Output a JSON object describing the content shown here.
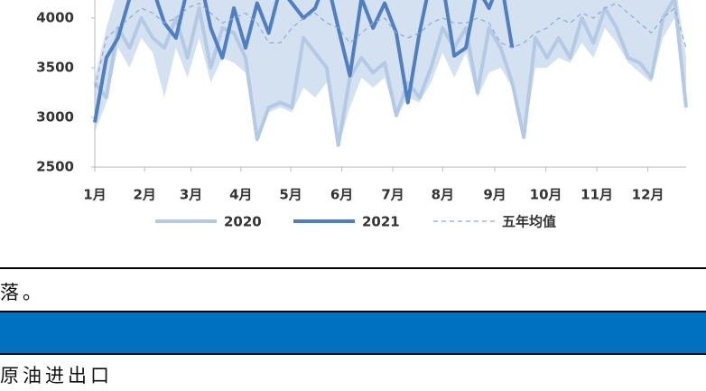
{
  "chart_data": {
    "type": "line",
    "x": [
      1,
      2,
      3,
      4,
      5,
      6,
      7,
      8,
      9,
      10,
      11,
      12,
      13,
      14,
      15,
      16,
      17,
      18,
      19,
      20,
      21,
      22,
      23,
      24,
      25,
      26,
      27,
      28,
      29,
      30,
      31,
      32,
      33,
      34,
      35,
      36,
      37,
      38,
      39,
      40,
      41,
      42,
      43,
      44,
      45,
      46,
      47,
      48,
      49,
      50,
      51,
      52
    ],
    "xlim": [
      1,
      52
    ],
    "xticks": [
      {
        "value": 1,
        "label": "1月"
      },
      {
        "value": 5.3,
        "label": "2月"
      },
      {
        "value": 9.3,
        "label": "3月"
      },
      {
        "value": 13.6,
        "label": "4月"
      },
      {
        "value": 17.9,
        "label": "5月"
      },
      {
        "value": 22.3,
        "label": "6月"
      },
      {
        "value": 26.7,
        "label": "7月"
      },
      {
        "value": 31,
        "label": "8月"
      },
      {
        "value": 35.5,
        "label": "9月"
      },
      {
        "value": 39.9,
        "label": "10月"
      },
      {
        "value": 44.3,
        "label": "11月"
      },
      {
        "value": 48.7,
        "label": "12月"
      }
    ],
    "ylim": [
      2500,
      4500
    ],
    "yticks": [
      2500,
      3000,
      3500,
      4000
    ],
    "band": {
      "color": "#c9d9ee",
      "lower": [
        2850,
        3150,
        3700,
        3500,
        3800,
        3650,
        3200,
        3700,
        3400,
        3800,
        3350,
        3600,
        3550,
        3450,
        2750,
        3050,
        3100,
        3050,
        3300,
        3200,
        3350,
        2700,
        3100,
        3400,
        3300,
        3400,
        3000,
        3200,
        3150,
        3350,
        3650,
        3400,
        3650,
        3200,
        3450,
        3500,
        3300,
        2780,
        3500,
        3500,
        3600,
        3550,
        3750,
        3600,
        3900,
        3750,
        3550,
        3450,
        3350,
        3800,
        4000,
        3050
      ],
      "upper": [
        3400,
        3900,
        4300,
        4400,
        4400,
        4400,
        4400,
        4400,
        4400,
        4400,
        4400,
        4400,
        4400,
        4400,
        4400,
        4400,
        4400,
        4400,
        4400,
        4400,
        4400,
        4400,
        4400,
        4400,
        4400,
        4400,
        4400,
        4400,
        4400,
        4400,
        4400,
        4400,
        4400,
        4400,
        4400,
        4400,
        4400,
        4400,
        4400,
        4400,
        4400,
        4400,
        4400,
        4400,
        4400,
        4400,
        4400,
        4400,
        4400,
        4400,
        4400,
        3600
      ]
    },
    "series": [
      {
        "name": "2020",
        "color": "#b4c9e4",
        "width": 4,
        "dashed": false,
        "values": [
          3350,
          3200,
          3900,
          3700,
          4000,
          3800,
          3700,
          4000,
          3600,
          4100,
          3500,
          3900,
          3850,
          3600,
          2780,
          3100,
          3150,
          3100,
          3800,
          3650,
          3500,
          2720,
          3400,
          3600,
          3450,
          3550,
          3020,
          3350,
          3200,
          3500,
          3900,
          3700,
          3900,
          3250,
          3900,
          3700,
          3350,
          2800,
          3800,
          3600,
          3800,
          3600,
          4000,
          3750,
          4100,
          3900,
          3600,
          3550,
          3400,
          4000,
          4200,
          3100
        ]
      },
      {
        "name": "2021",
        "color": "#4f7fc0",
        "width": 4,
        "dashed": false,
        "values": [
          2950,
          3600,
          3800,
          4200,
          4400,
          4300,
          3950,
          3800,
          4300,
          4450,
          3900,
          3600,
          4100,
          3700,
          4150,
          3850,
          4300,
          4150,
          4000,
          4100,
          4400,
          3900,
          3420,
          4200,
          3900,
          4150,
          3850,
          3150,
          3850,
          4400,
          4350,
          3620,
          3700,
          4300,
          4100,
          4400,
          3700,
          null,
          null,
          null,
          null,
          null,
          null,
          null,
          null,
          null,
          null,
          null,
          null,
          null,
          null,
          null
        ]
      },
      {
        "name": "五年均值",
        "color": "#8fa9d4",
        "width": 1.2,
        "dashed": true,
        "values": [
          3300,
          3800,
          3900,
          4000,
          4100,
          4050,
          3950,
          4000,
          4100,
          4150,
          4050,
          3950,
          4000,
          4050,
          3950,
          3750,
          3750,
          3900,
          4000,
          4050,
          3950,
          3900,
          3750,
          3850,
          3950,
          4000,
          3850,
          3800,
          3850,
          3950,
          4000,
          3950,
          3950,
          4000,
          3950,
          3750,
          3700,
          3750,
          3850,
          3900,
          4000,
          3950,
          4050,
          4000,
          4100,
          4150,
          4050,
          3950,
          3850,
          4000,
          4100,
          3700
        ]
      }
    ]
  },
  "document": {
    "lines": [
      "落。",
      "原油进出口"
    ]
  }
}
